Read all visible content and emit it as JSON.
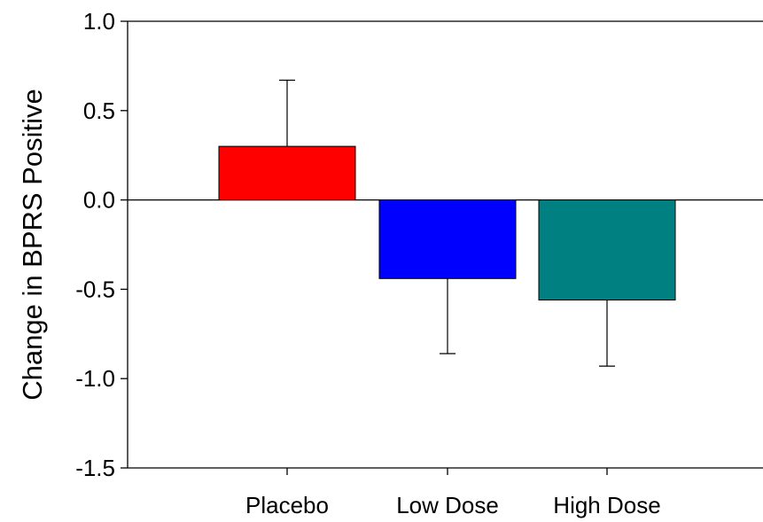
{
  "chart_data": {
    "type": "bar",
    "title": "",
    "xlabel": "",
    "ylabel": "Change in BPRS Positive",
    "categories": [
      "Placebo",
      "Low Dose",
      "High Dose"
    ],
    "values": [
      0.3,
      -0.44,
      -0.56
    ],
    "error_upper": [
      0.67,
      null,
      null
    ],
    "error_lower": [
      null,
      -0.86,
      -0.93
    ],
    "colors": [
      "#ff0000",
      "#0000ff",
      "#008080"
    ],
    "ylim": [
      -1.5,
      1.0
    ],
    "yticks": [
      1.0,
      0.5,
      0.0,
      -0.5,
      -1.0,
      -1.5
    ],
    "ytick_labels": [
      "1.0",
      "0.5",
      "0.0",
      "-0.5",
      "-1.0",
      "-1.5"
    ],
    "zero_line": true,
    "grid": false,
    "legend": "none"
  }
}
